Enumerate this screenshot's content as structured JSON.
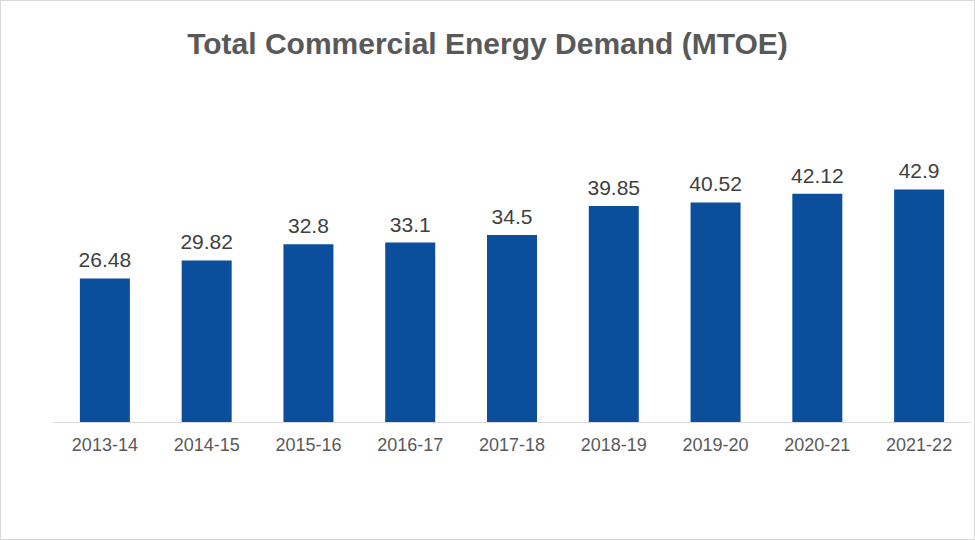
{
  "chart_data": {
    "type": "bar",
    "title": "Total Commercial Energy Demand (MTOE)",
    "categories": [
      "2013-14",
      "2014-15",
      "2015-16",
      "2016-17",
      "2017-18",
      "2018-19",
      "2019-20",
      "2020-21",
      "2021-22"
    ],
    "values": [
      26.48,
      29.82,
      32.8,
      33.1,
      34.5,
      39.85,
      40.52,
      42.12,
      42.9
    ],
    "color": "#0b4f9c",
    "ylim": [
      0,
      50
    ],
    "grid": false,
    "data_labels": true,
    "tick_labels": "x"
  }
}
